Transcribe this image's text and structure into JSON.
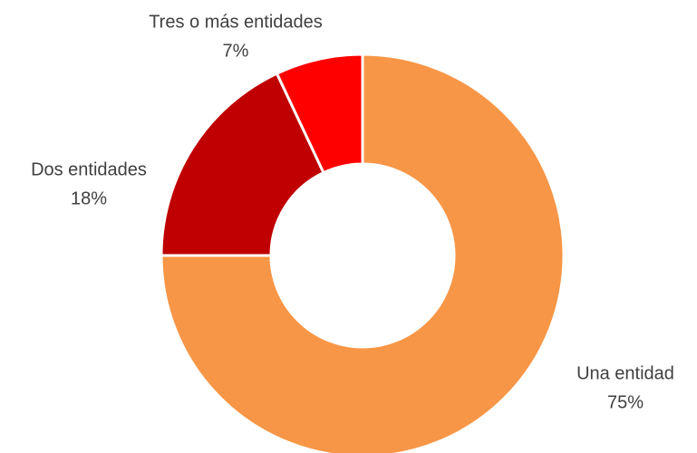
{
  "chart_data": {
    "type": "donut",
    "categories": [
      "Una entidad",
      "Dos entidades",
      "Tres o más entidades"
    ],
    "values": [
      75,
      18,
      7
    ],
    "value_labels": [
      "75%",
      "18%",
      "7%"
    ],
    "colors": [
      "#f79646",
      "#c00000",
      "#ff0000"
    ]
  }
}
